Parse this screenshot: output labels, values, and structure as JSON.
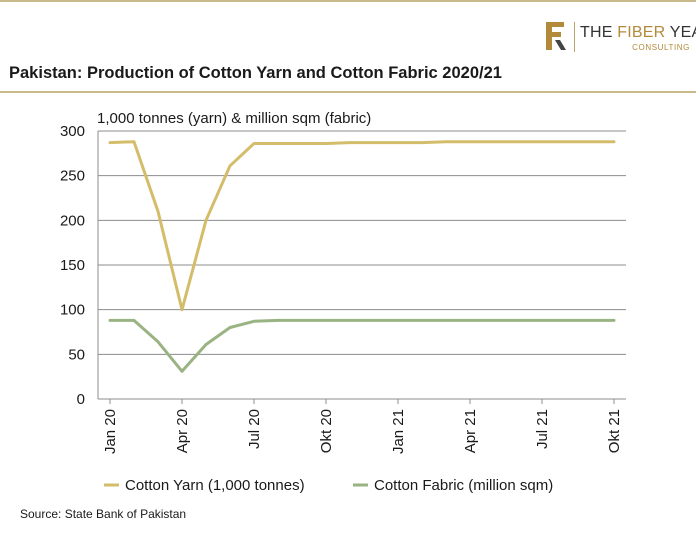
{
  "brand": {
    "name_part1": "THE ",
    "name_part2": "FIBER",
    "name_part3": " YEAR",
    "subtitle": "CONSULTING"
  },
  "chart_data": {
    "type": "line",
    "title": "Pakistan: Production of Cotton Yarn and Cotton Fabric 2020/21",
    "ylabel": "1,000 tonnes (yarn) & million sqm (fabric)",
    "xlabel": "",
    "ylim": [
      0,
      300
    ],
    "yticks": [
      0,
      50,
      100,
      150,
      200,
      250,
      300
    ],
    "x": [
      "Jan 20",
      "Feb 20",
      "Mar 20",
      "Apr 20",
      "May 20",
      "Jun 20",
      "Jul 20",
      "Aug 20",
      "Sep 20",
      "Okt 20",
      "Nov 20",
      "Dez 20",
      "Jan 21",
      "Feb 21",
      "Mar 21",
      "Apr 21",
      "May 21",
      "Jun 21",
      "Jul 21",
      "Aug 21",
      "Sep 21",
      "Okt 21"
    ],
    "xtick_labels": [
      "Jan 20",
      "Apr 20",
      "Jul 20",
      "Okt 20",
      "Jan 21",
      "Apr 21",
      "Jul 21",
      "Okt 21"
    ],
    "xtick_positions": [
      0,
      3,
      6,
      9,
      12,
      15,
      18,
      21
    ],
    "grid": true,
    "legend_position": "bottom",
    "series": [
      {
        "name": "Cotton Yarn (1,000 tonnes)",
        "color": "#d4bd6a",
        "values": [
          287,
          288,
          210,
          100,
          200,
          261,
          286,
          286,
          286,
          286,
          287,
          287,
          287,
          287,
          288,
          288,
          288,
          288,
          288,
          288,
          288,
          288
        ]
      },
      {
        "name": "Cotton Fabric (million sqm)",
        "color": "#9ab383",
        "values": [
          88,
          88,
          64,
          31,
          61,
          80,
          87,
          88,
          88,
          88,
          88,
          88,
          88,
          88,
          88,
          88,
          88,
          88,
          88,
          88,
          88,
          88
        ]
      }
    ]
  },
  "source": "Source: State Bank of Pakistan"
}
